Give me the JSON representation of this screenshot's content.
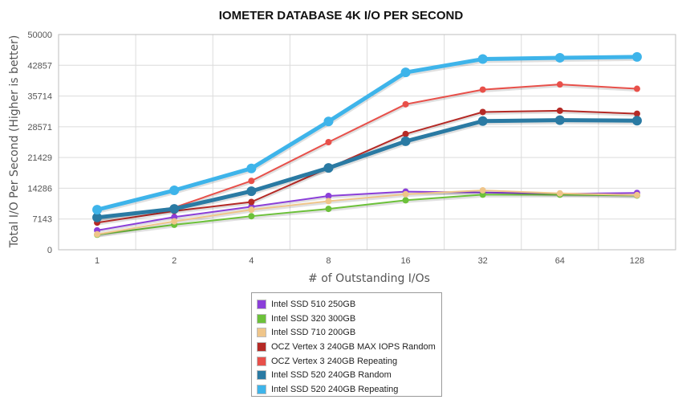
{
  "chart_data": {
    "type": "line",
    "title": "IOMETER DATABASE 4K I/O PER SECOND",
    "xlabel": "# of Outstanding I/Os",
    "ylabel": "Total I/O Per Second (Higher is better)",
    "categories": [
      "1",
      "2",
      "4",
      "8",
      "16",
      "32",
      "64",
      "128"
    ],
    "ylim": [
      0,
      50000
    ],
    "yticks": [
      "0",
      "7143",
      "14286",
      "21429",
      "28571",
      "35714",
      "42857",
      "50000"
    ],
    "grid": true,
    "legend_position": "bottom",
    "series": [
      {
        "name": "Intel SSD 510 250GB",
        "color": "#8b3fd9",
        "values": [
          4500,
          7600,
          10000,
          12500,
          13500,
          13300,
          13000,
          13200
        ]
      },
      {
        "name": "Intel SSD 320 300GB",
        "color": "#6cc13a",
        "values": [
          3500,
          5800,
          7800,
          9500,
          11500,
          12800,
          12800,
          12600
        ]
      },
      {
        "name": "Intel SSD 710 200GB",
        "color": "#efc58a",
        "values": [
          3600,
          6600,
          9300,
          11300,
          12900,
          13800,
          13100,
          12700
        ]
      },
      {
        "name": "OCZ Vertex 3 240GB MAX IOPS Random",
        "color": "#b52a26",
        "values": [
          6300,
          9000,
          11100,
          19000,
          26900,
          32000,
          32300,
          31600
        ]
      },
      {
        "name": "OCZ Vertex 3 240GB Repeating",
        "color": "#e8504a",
        "values": [
          7300,
          9800,
          16000,
          25000,
          33800,
          37200,
          38400,
          37400
        ]
      },
      {
        "name": "Intel SSD 520 240GB Random",
        "color": "#2a7aa3",
        "values": [
          7500,
          9500,
          13600,
          19000,
          25200,
          29900,
          30100,
          30000
        ]
      },
      {
        "name": "Intel SSD 520 240GB Repeating",
        "color": "#3eb4ea",
        "values": [
          9300,
          13800,
          18900,
          29800,
          41200,
          44300,
          44600,
          44800
        ]
      }
    ]
  }
}
